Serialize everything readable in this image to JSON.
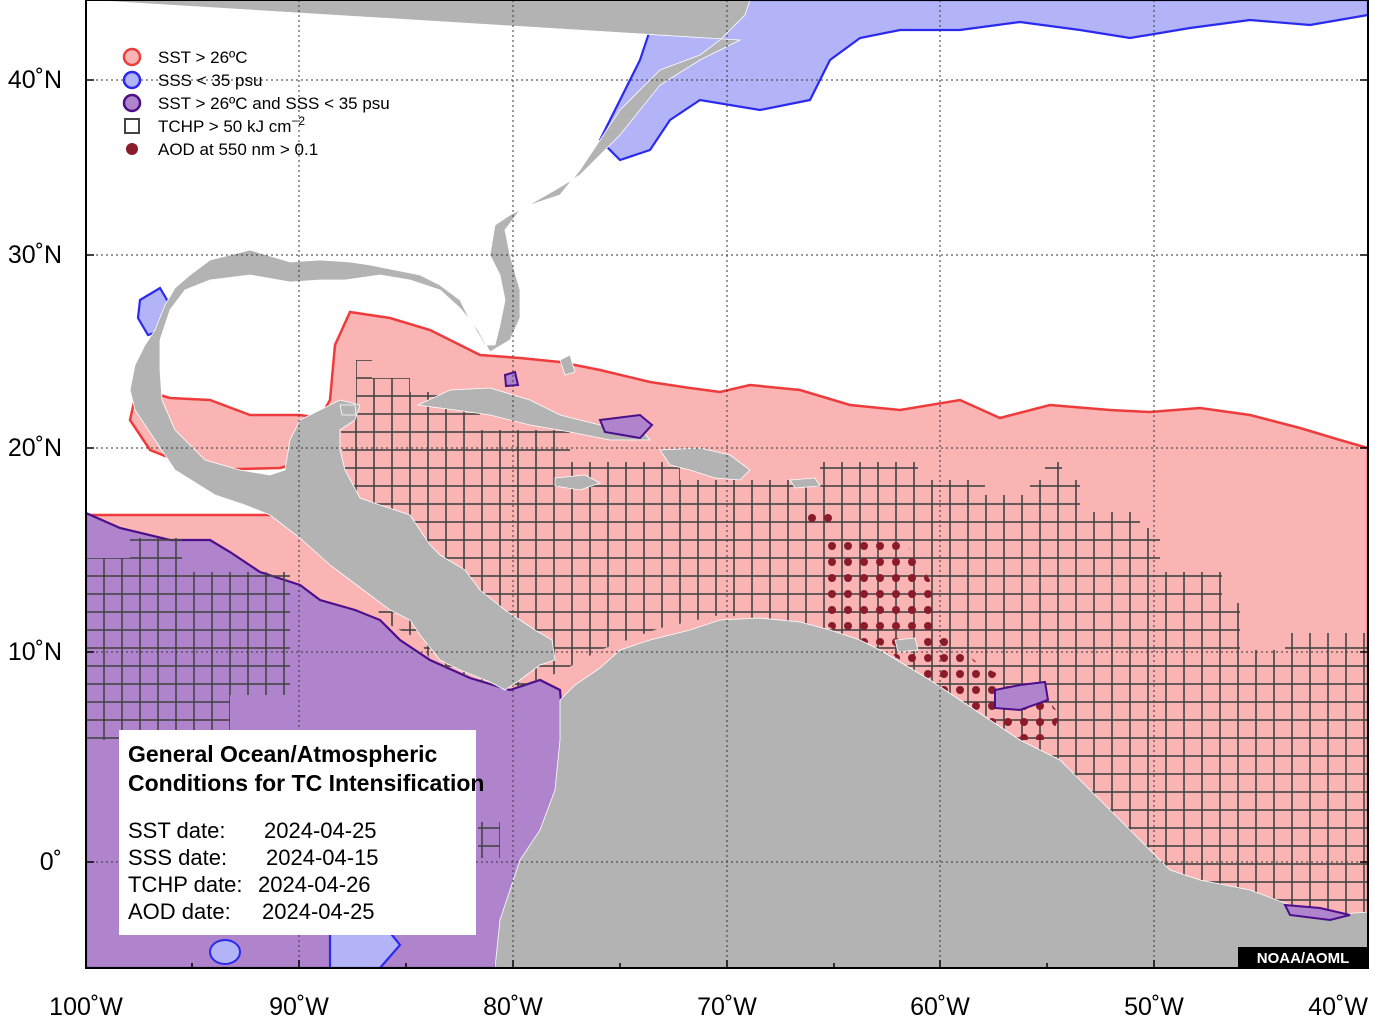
{
  "colors": {
    "land": "#b3b3b3",
    "ocean": "#ffffff",
    "sst_fill": "#fbb4b4",
    "sst_line": "#ee3b3b",
    "sss_fill": "#b3b3f7",
    "sss_line": "#2a2aee",
    "both_fill": "#b084cc",
    "both_line": "#4b0f8c",
    "tchp_line": "#444444",
    "aod_dot": "#8b1a2b",
    "grid": "#444444",
    "credit_bg": "#000000"
  },
  "legend": {
    "sst_label": "SST > 26ºC",
    "sss_label": "SSS < 35 psu",
    "both_label": "SST > 26ºC and SSS < 35 psu",
    "tchp_label": "TCHP > 50 kJ cm",
    "tchp_exponent": "−2",
    "aod_label": "AOD at 550 nm > 0.1"
  },
  "info_box": {
    "title_line1": "General Ocean/Atmospheric",
    "title_line2": "Conditions for TC Intensification",
    "sst_date_label": "SST date:",
    "sst_date": "2024-04-25",
    "sss_date_label": "SSS date:",
    "sss_date": "2024-04-15",
    "tchp_date_label": "TCHP date:",
    "tchp_date": "2024-04-26",
    "aod_date_label": "AOD date:",
    "aod_date": "2024-04-25"
  },
  "credit": "NOAA/AOML",
  "axes": {
    "x_ticks": [
      "100˚W",
      "90˚W",
      "80˚W",
      "70˚W",
      "60˚W",
      "50˚W",
      "40˚W"
    ],
    "y_ticks": [
      "40˚N",
      "30˚N",
      "20˚N",
      "10˚N",
      "0˚"
    ],
    "lon_range": [
      -100,
      -40
    ],
    "lat_range": [
      -5,
      44
    ]
  }
}
